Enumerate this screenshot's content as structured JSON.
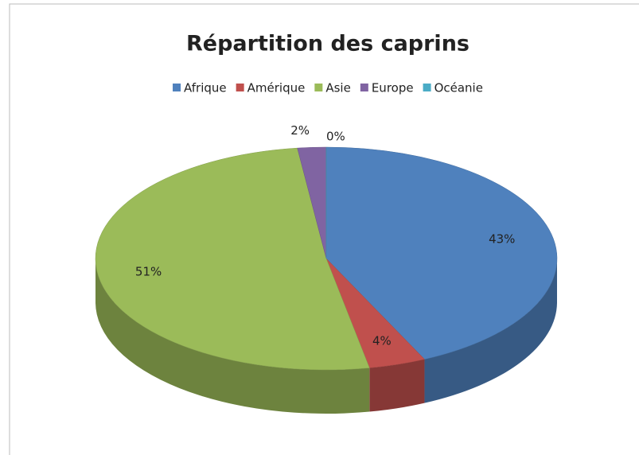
{
  "chart_data": {
    "type": "pie",
    "title": "Répartition des caprins",
    "categories": [
      "Afrique",
      "Amérique",
      "Asie",
      "Europe",
      "Océanie"
    ],
    "values": [
      43,
      4,
      51,
      2,
      0
    ],
    "value_labels": [
      "43%",
      "4%",
      "51%",
      "2%",
      "0%"
    ],
    "colors": [
      "#4f81bd",
      "#c0504d",
      "#9bbb59",
      "#8064a2",
      "#4bacc6"
    ],
    "legend": "top"
  }
}
